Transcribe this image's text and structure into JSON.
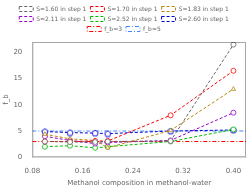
{
  "chart_data": {
    "type": "line",
    "xlabel": "Methanol composition in methanol-water",
    "ylabel": "f_b",
    "xlim": [
      0.08,
      0.42
    ],
    "ylim": [
      0,
      22
    ],
    "xticks": [
      0.08,
      0.16,
      0.24,
      0.32,
      {
        "value": 0.4,
        "label": "0.40"
      }
    ],
    "yticks": [
      0,
      5,
      10,
      15,
      20
    ],
    "grid": false,
    "legend": "top",
    "x": [
      0.1,
      0.14,
      0.18,
      0.2,
      0.3,
      0.4
    ],
    "series": [
      {
        "name": "S=1.60 in step 1",
        "color": "#666666",
        "marker": "circle",
        "line_style": "dashed",
        "values": [
          3.0,
          2.9,
          2.9,
          3.0,
          3.1,
          21.5
        ]
      },
      {
        "name": "S=1.70 in step 1",
        "color": "#ff0000",
        "marker": "circle",
        "line_style": "dashed",
        "values": [
          3.0,
          3.0,
          3.1,
          3.1,
          8.0,
          16.5
        ]
      },
      {
        "name": "S=1.83 in step 1",
        "color": "#b8860b",
        "marker": "triangle",
        "line_style": "dashed",
        "values": [
          4.4,
          3.5,
          3.2,
          1.8,
          5.1,
          13.0
        ]
      },
      {
        "name": "S=2.11 in step 1",
        "color": "#9900cc",
        "marker": "circle",
        "line_style": "dashed",
        "values": [
          4.0,
          3.2,
          2.6,
          2.8,
          3.2,
          8.5
        ]
      },
      {
        "name": "S=2.52 in step 1",
        "color": "#00bb00",
        "marker": "circle",
        "line_style": "dashed",
        "values": [
          2.0,
          2.2,
          1.8,
          2.0,
          3.0,
          5.3
        ]
      },
      {
        "name": "S=2.60 in step 1",
        "color": "#0000cc",
        "marker": "pentagon",
        "line_style": "dashed",
        "values": [
          4.9,
          4.7,
          4.6,
          4.5,
          5.0,
          5.2
        ]
      }
    ],
    "hlines": [
      {
        "name": "f_b=3",
        "value": 3.0,
        "color": "#ff0000",
        "line_style": "dashdot"
      },
      {
        "name": "f_b=5",
        "value": 5.0,
        "color": "#4488ff",
        "line_style": "dashdot"
      }
    ]
  }
}
